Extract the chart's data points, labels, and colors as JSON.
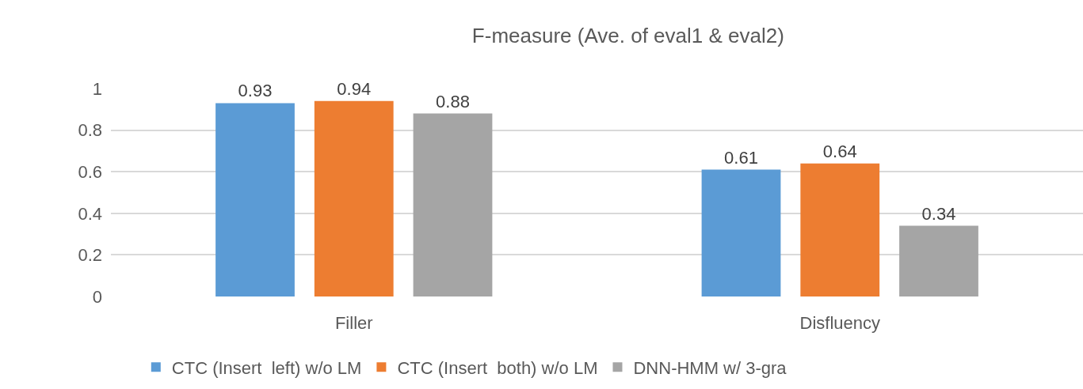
{
  "chart_data": {
    "type": "bar",
    "title": "F-measure (Ave. of eval1 & eval2)",
    "categories": [
      "Filler",
      "Disfluency"
    ],
    "series": [
      {
        "name": "CTC (Insert  left) w/o LM",
        "color": "#5b9bd5",
        "values": [
          0.93,
          0.61
        ]
      },
      {
        "name": "CTC (Insert  both) w/o LM",
        "color": "#ed7d31",
        "values": [
          0.94,
          0.64
        ]
      },
      {
        "name": "DNN-HMM w/ 3-gra",
        "color": "#a5a5a5",
        "values": [
          0.88,
          0.34
        ]
      }
    ],
    "ylim": [
      0,
      1
    ],
    "yticks": [
      0,
      0.2,
      0.4,
      0.6,
      0.8,
      1
    ],
    "grid": "y",
    "legend": "bottom",
    "data_labels": true
  }
}
